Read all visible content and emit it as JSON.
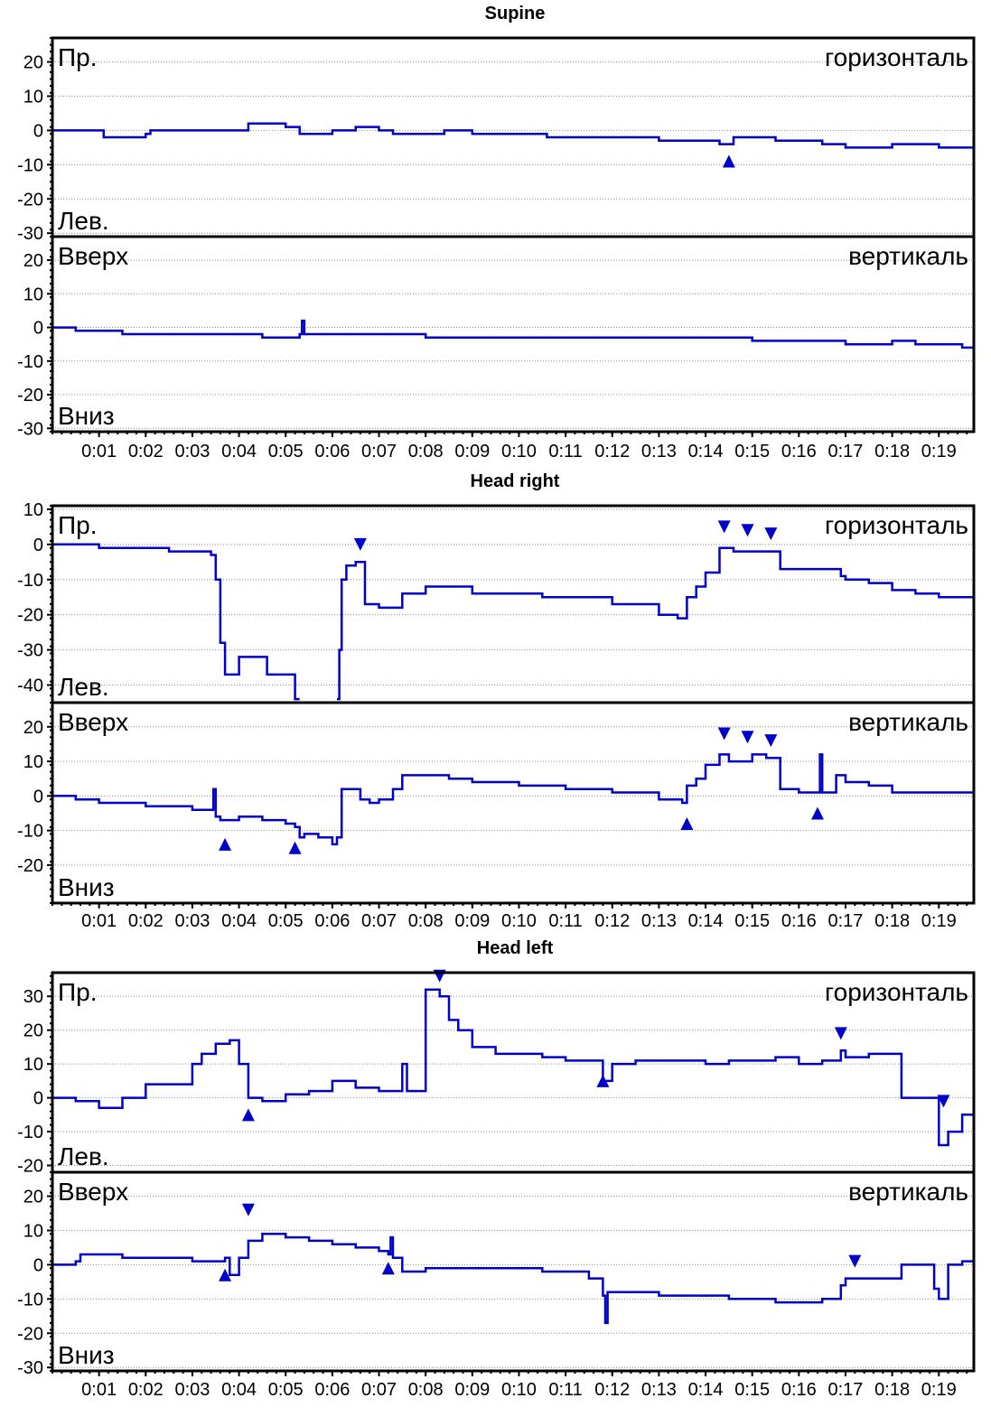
{
  "chart_data": [
    {
      "type": "line",
      "title": "Supine",
      "x_ticks": [
        "0:01",
        "0:02",
        "0:03",
        "0:04",
        "0:05",
        "0:06",
        "0:07",
        "0:08",
        "0:09",
        "0:10",
        "0:11",
        "0:12",
        "0:13",
        "0:14",
        "0:15",
        "0:16",
        "0:17",
        "0:18",
        "0:19"
      ],
      "x_range": [
        "0:00",
        "0:20"
      ],
      "grid": true,
      "panels": [
        {
          "name": "горизонталь",
          "top_label": "Пр.",
          "bottom_label": "Лев.",
          "ylim": [
            -31,
            27
          ],
          "yticks": [
            20,
            10,
            0,
            -10,
            -20,
            -30
          ],
          "series": [
            {
              "x": [
                0,
                1,
                1.1,
                2,
                2.1,
                3,
                3.1,
                4,
                4.2,
                5,
                5.3,
                6,
                6.5,
                7,
                7.3,
                8,
                8.4,
                9,
                9.5,
                10,
                10.6,
                11,
                11.5,
                12,
                12.7,
                13,
                13.5,
                14,
                14.3,
                14.6,
                15,
                15.5,
                16,
                16.5,
                17,
                17.5,
                18,
                18.5,
                19,
                19.5,
                19.9
              ],
              "y": [
                0,
                0,
                -2,
                -1,
                0,
                0,
                0,
                0,
                2,
                1,
                -1,
                0,
                1,
                0,
                -1,
                -1,
                0,
                -1,
                -1,
                -1,
                -2,
                -2,
                -2,
                -2,
                -2,
                -3,
                -3,
                -3,
                -4,
                -2,
                -2,
                -3,
                -3,
                -4,
                -5,
                -5,
                -4,
                -4,
                -5,
                -5,
                -4
              ]
            }
          ],
          "markers": [
            {
              "x": 14.5,
              "y": -9,
              "dir": "up"
            }
          ]
        },
        {
          "name": "вертикаль",
          "top_label": "Вверх",
          "bottom_label": "Вниз",
          "ylim": [
            -31,
            27
          ],
          "yticks": [
            20,
            10,
            0,
            -10,
            -20,
            -30
          ],
          "series": [
            {
              "x": [
                0,
                0.5,
                1,
                1.5,
                2,
                3,
                4,
                4.5,
                5,
                5.3,
                5.35,
                5.4,
                5.5,
                6,
                7,
                8,
                9,
                10,
                11,
                12,
                13,
                14,
                15,
                16,
                17,
                17.5,
                18,
                18.5,
                19,
                19.5,
                19.9
              ],
              "y": [
                0,
                -1,
                -1,
                -2,
                -2,
                -2,
                -2,
                -3,
                -3,
                -2,
                2,
                -2,
                -2,
                -2,
                -2,
                -3,
                -3,
                -3,
                -3,
                -3,
                -3,
                -3,
                -4,
                -4,
                -5,
                -5,
                -4,
                -5,
                -5,
                -6,
                -6
              ]
            }
          ],
          "markers": []
        }
      ]
    },
    {
      "type": "line",
      "title": "Head right",
      "x_ticks": [
        "0:01",
        "0:02",
        "0:03",
        "0:04",
        "0:05",
        "0:06",
        "0:07",
        "0:08",
        "0:09",
        "0:10",
        "0:11",
        "0:12",
        "0:13",
        "0:14",
        "0:15",
        "0:16",
        "0:17",
        "0:18",
        "0:19"
      ],
      "x_range": [
        "0:00",
        "0:20"
      ],
      "grid": true,
      "panels": [
        {
          "name": "горизонталь",
          "top_label": "Пр.",
          "bottom_label": "Лев.",
          "ylim": [
            -45,
            11
          ],
          "yticks": [
            10,
            0,
            -10,
            -20,
            -30,
            -40
          ],
          "series": [
            {
              "x": [
                0,
                0.5,
                1,
                1.5,
                2,
                2.5,
                3,
                3.2,
                3.4,
                3.5,
                3.6,
                3.7,
                3.8,
                4,
                4.5,
                4.6,
                5,
                5.2,
                5.3
              ],
              "y": [
                0,
                0,
                -1,
                -1,
                -1,
                -2,
                -2,
                -2,
                -3,
                -10,
                -28,
                -37,
                -37,
                -32,
                -32,
                -37,
                -37,
                -44,
                -44
              ]
            },
            {
              "x": [
                6.1,
                6.15,
                6.2,
                6.3,
                6.5,
                6.6,
                6.7,
                6.8,
                7,
                7.5,
                8,
                8.5,
                9,
                9.5,
                10,
                10.5,
                11,
                11.5,
                12,
                12.5,
                13,
                13.4,
                13.6,
                13.8,
                14,
                14.3,
                14.6,
                15,
                15.3,
                15.6,
                16,
                16.5,
                16.9,
                17,
                17.5,
                18,
                18.5,
                19,
                19.5,
                19.9
              ],
              "y": [
                -44,
                -30,
                -10,
                -6,
                -5,
                -5,
                -17,
                -17,
                -18,
                -14,
                -12,
                -12,
                -14,
                -14,
                -14,
                -15,
                -15,
                -15,
                -17,
                -17,
                -20,
                -21,
                -15,
                -12,
                -8,
                -1,
                -2,
                -2,
                -2,
                -7,
                -7,
                -7,
                -9,
                -10,
                -11,
                -13,
                -14,
                -15,
                -15,
                -13
              ]
            }
          ],
          "markers": [
            {
              "x": 6.6,
              "y": 0,
              "dir": "down"
            },
            {
              "x": 14.4,
              "y": 5,
              "dir": "down"
            },
            {
              "x": 14.9,
              "y": 4,
              "dir": "down"
            },
            {
              "x": 15.4,
              "y": 3,
              "dir": "down"
            }
          ]
        },
        {
          "name": "вертикаль",
          "top_label": "Вверх",
          "bottom_label": "Вниз",
          "ylim": [
            -31,
            27
          ],
          "yticks": [
            20,
            10,
            0,
            -10,
            -20
          ],
          "series": [
            {
              "x": [
                0,
                0.5,
                1,
                1.5,
                2,
                2.5,
                3,
                3.4,
                3.45,
                3.5,
                3.6,
                4,
                4.5,
                5,
                5.2,
                5.3,
                5.4,
                5.7,
                6,
                6.1,
                6.2,
                6.3,
                6.6,
                6.8,
                7,
                7.3,
                7.5,
                8,
                8.5,
                9,
                9.5,
                10,
                11,
                12,
                13,
                13.5,
                13.6,
                13.8,
                14,
                14.3,
                14.5,
                15,
                15.3,
                15.4,
                15.6,
                16,
                16.4,
                16.45,
                16.5,
                16.8,
                17,
                17.5,
                18,
                18.5,
                19,
                19.5,
                19.9
              ],
              "y": [
                0,
                -1,
                -2,
                -2,
                -3,
                -3,
                -4,
                -4,
                2,
                -6,
                -7,
                -6,
                -7,
                -8,
                -9,
                -12,
                -11,
                -12,
                -14,
                -12,
                2,
                2,
                -1,
                -2,
                -1,
                2,
                6,
                6,
                5,
                4,
                4,
                3,
                2,
                1,
                -1,
                -2,
                3,
                5,
                9,
                12,
                10,
                12,
                11,
                11,
                2,
                1,
                1,
                12,
                1,
                6,
                4,
                3,
                1,
                1,
                1,
                1,
                1
              ]
            }
          ],
          "markers": [
            {
              "x": 3.7,
              "y": -14,
              "dir": "up"
            },
            {
              "x": 5.2,
              "y": -15,
              "dir": "up"
            },
            {
              "x": 13.6,
              "y": -8,
              "dir": "up"
            },
            {
              "x": 14.4,
              "y": 18,
              "dir": "down"
            },
            {
              "x": 14.9,
              "y": 17,
              "dir": "down"
            },
            {
              "x": 15.4,
              "y": 16,
              "dir": "down"
            },
            {
              "x": 16.4,
              "y": -5,
              "dir": "up"
            }
          ]
        }
      ]
    },
    {
      "type": "line",
      "title": "Head left",
      "x_ticks": [
        "0:01",
        "0:02",
        "0:03",
        "0:04",
        "0:05",
        "0:06",
        "0:07",
        "0:08",
        "0:09",
        "0:10",
        "0:11",
        "0:12",
        "0:13",
        "0:14",
        "0:15",
        "0:16",
        "0:17",
        "0:18",
        "0:19"
      ],
      "x_range": [
        "0:00",
        "0:20"
      ],
      "grid": true,
      "panels": [
        {
          "name": "горизонталь",
          "top_label": "Пр.",
          "bottom_label": "Лев.",
          "ylim": [
            -22,
            37
          ],
          "yticks": [
            30,
            20,
            10,
            0,
            -10,
            -20
          ],
          "series": [
            {
              "x": [
                0,
                0.5,
                1,
                1.5,
                2,
                2.5,
                3,
                3.2,
                3.5,
                3.7,
                3.8,
                4,
                4.2,
                4.5,
                5,
                5.5,
                6,
                6.5,
                7,
                7.4,
                7.5,
                7.6,
                8,
                8.3,
                8.5,
                8.7,
                9,
                9.5,
                10,
                10.5,
                11,
                11.5,
                11.8,
                12,
                12.5,
                13,
                13.5,
                14,
                14.5,
                15,
                15.5,
                16,
                16.5,
                16.9,
                17,
                17.5,
                18,
                18.2,
                18.5,
                18.9,
                19,
                19.2,
                19.5,
                19.9
              ],
              "y": [
                0,
                -1,
                -3,
                0,
                4,
                4,
                10,
                13,
                16,
                16,
                17,
                10,
                0,
                -1,
                1,
                2,
                5,
                3,
                2,
                2,
                10,
                2,
                32,
                30,
                23,
                20,
                15,
                13,
                13,
                12,
                11,
                11,
                5,
                10,
                11,
                11,
                11,
                10,
                11,
                11,
                12,
                10,
                11,
                14,
                12,
                13,
                13,
                0,
                0,
                0,
                -14,
                -10,
                -5,
                -1
              ]
            }
          ],
          "markers": [
            {
              "x": 4.2,
              "y": -5,
              "dir": "up"
            },
            {
              "x": 8.3,
              "y": 36,
              "dir": "down"
            },
            {
              "x": 11.8,
              "y": 5,
              "dir": "up"
            },
            {
              "x": 16.9,
              "y": 19,
              "dir": "down"
            },
            {
              "x": 19.1,
              "y": -1,
              "dir": "down"
            }
          ]
        },
        {
          "name": "вертикаль",
          "top_label": "Вверх",
          "bottom_label": "Вниз",
          "ylim": [
            -31,
            27
          ],
          "yticks": [
            20,
            10,
            0,
            -10,
            -20,
            -30
          ],
          "series": [
            {
              "x": [
                0,
                0.3,
                0.5,
                0.6,
                1,
                1.5,
                2,
                2.5,
                3,
                3.5,
                3.7,
                3.8,
                4,
                4.2,
                4.5,
                5,
                5.5,
                6,
                6.5,
                7,
                7.2,
                7.25,
                7.3,
                7.5,
                8,
                8.5,
                9,
                9.5,
                10,
                10.5,
                11,
                11.5,
                11.8,
                11.85,
                11.9,
                12,
                12.5,
                13,
                13.5,
                14,
                14.5,
                15,
                15.5,
                16,
                16.5,
                16.9,
                17,
                17.5,
                18,
                18.2,
                18.5,
                18.9,
                19,
                19.2,
                19.5,
                19.9
              ],
              "y": [
                0,
                0,
                1,
                3,
                3,
                2,
                2,
                2,
                1,
                1,
                2,
                -3,
                2,
                7,
                9,
                8,
                7,
                6,
                5,
                4,
                3,
                8,
                2,
                -2,
                -1,
                -1,
                -1,
                -1,
                -1,
                -2,
                -2,
                -4,
                -9,
                -17,
                -8,
                -8,
                -8,
                -9,
                -9,
                -9,
                -10,
                -10,
                -11,
                -11,
                -10,
                -6,
                -4,
                -4,
                -4,
                0,
                0,
                -7,
                -10,
                0,
                1,
                2
              ]
            }
          ],
          "markers": [
            {
              "x": 3.7,
              "y": -3,
              "dir": "up"
            },
            {
              "x": 4.2,
              "y": 16,
              "dir": "down"
            },
            {
              "x": 7.2,
              "y": -1,
              "dir": "up"
            },
            {
              "x": 17.2,
              "y": 1,
              "dir": "down"
            }
          ]
        }
      ]
    }
  ]
}
